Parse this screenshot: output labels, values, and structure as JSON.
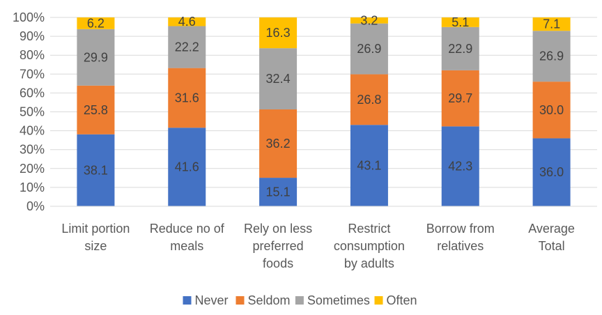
{
  "chart_data": {
    "type": "bar",
    "stacked": true,
    "percent_axis": true,
    "categories": [
      [
        "Limit portion",
        "size"
      ],
      [
        "Reduce no of",
        "meals"
      ],
      [
        "Rely on less",
        "preferred",
        "foods"
      ],
      [
        "Restrict",
        "consumption",
        "by adults"
      ],
      [
        "Borrow from",
        "relatives"
      ],
      [
        "Average",
        "Total"
      ]
    ],
    "series": [
      {
        "name": "Never",
        "color": "#4472C4",
        "values": [
          38.1,
          41.6,
          15.1,
          43.1,
          42.3,
          36.0
        ],
        "labels": [
          "38.1",
          "41.6",
          "15.1",
          "43.1",
          "42.3",
          "36.0"
        ]
      },
      {
        "name": "Seldom",
        "color": "#ED7D31",
        "values": [
          25.8,
          31.6,
          36.2,
          26.8,
          29.7,
          30.0
        ],
        "labels": [
          "25.8",
          "31.6",
          "36.2",
          "26.8",
          "29.7",
          "30.0"
        ]
      },
      {
        "name": "Sometimes",
        "color": "#A5A5A5",
        "values": [
          29.9,
          22.2,
          32.4,
          26.9,
          22.9,
          26.9
        ],
        "labels": [
          "29.9",
          "22.2",
          "32.4",
          "26.9",
          "22.9",
          "26.9"
        ]
      },
      {
        "name": "Often",
        "color": "#FFC000",
        "values": [
          6.2,
          4.6,
          16.3,
          3.2,
          5.1,
          7.1
        ],
        "labels": [
          "6.2",
          "4.6",
          "16.3",
          "3.2",
          "5.1",
          "7.1"
        ]
      }
    ],
    "yticks": [
      "0%",
      "10%",
      "20%",
      "30%",
      "40%",
      "50%",
      "60%",
      "70%",
      "80%",
      "90%",
      "100%"
    ],
    "ylim": [
      0,
      100
    ],
    "grid": true,
    "legend_position": "bottom",
    "title": "",
    "xlabel": "",
    "ylabel": ""
  }
}
